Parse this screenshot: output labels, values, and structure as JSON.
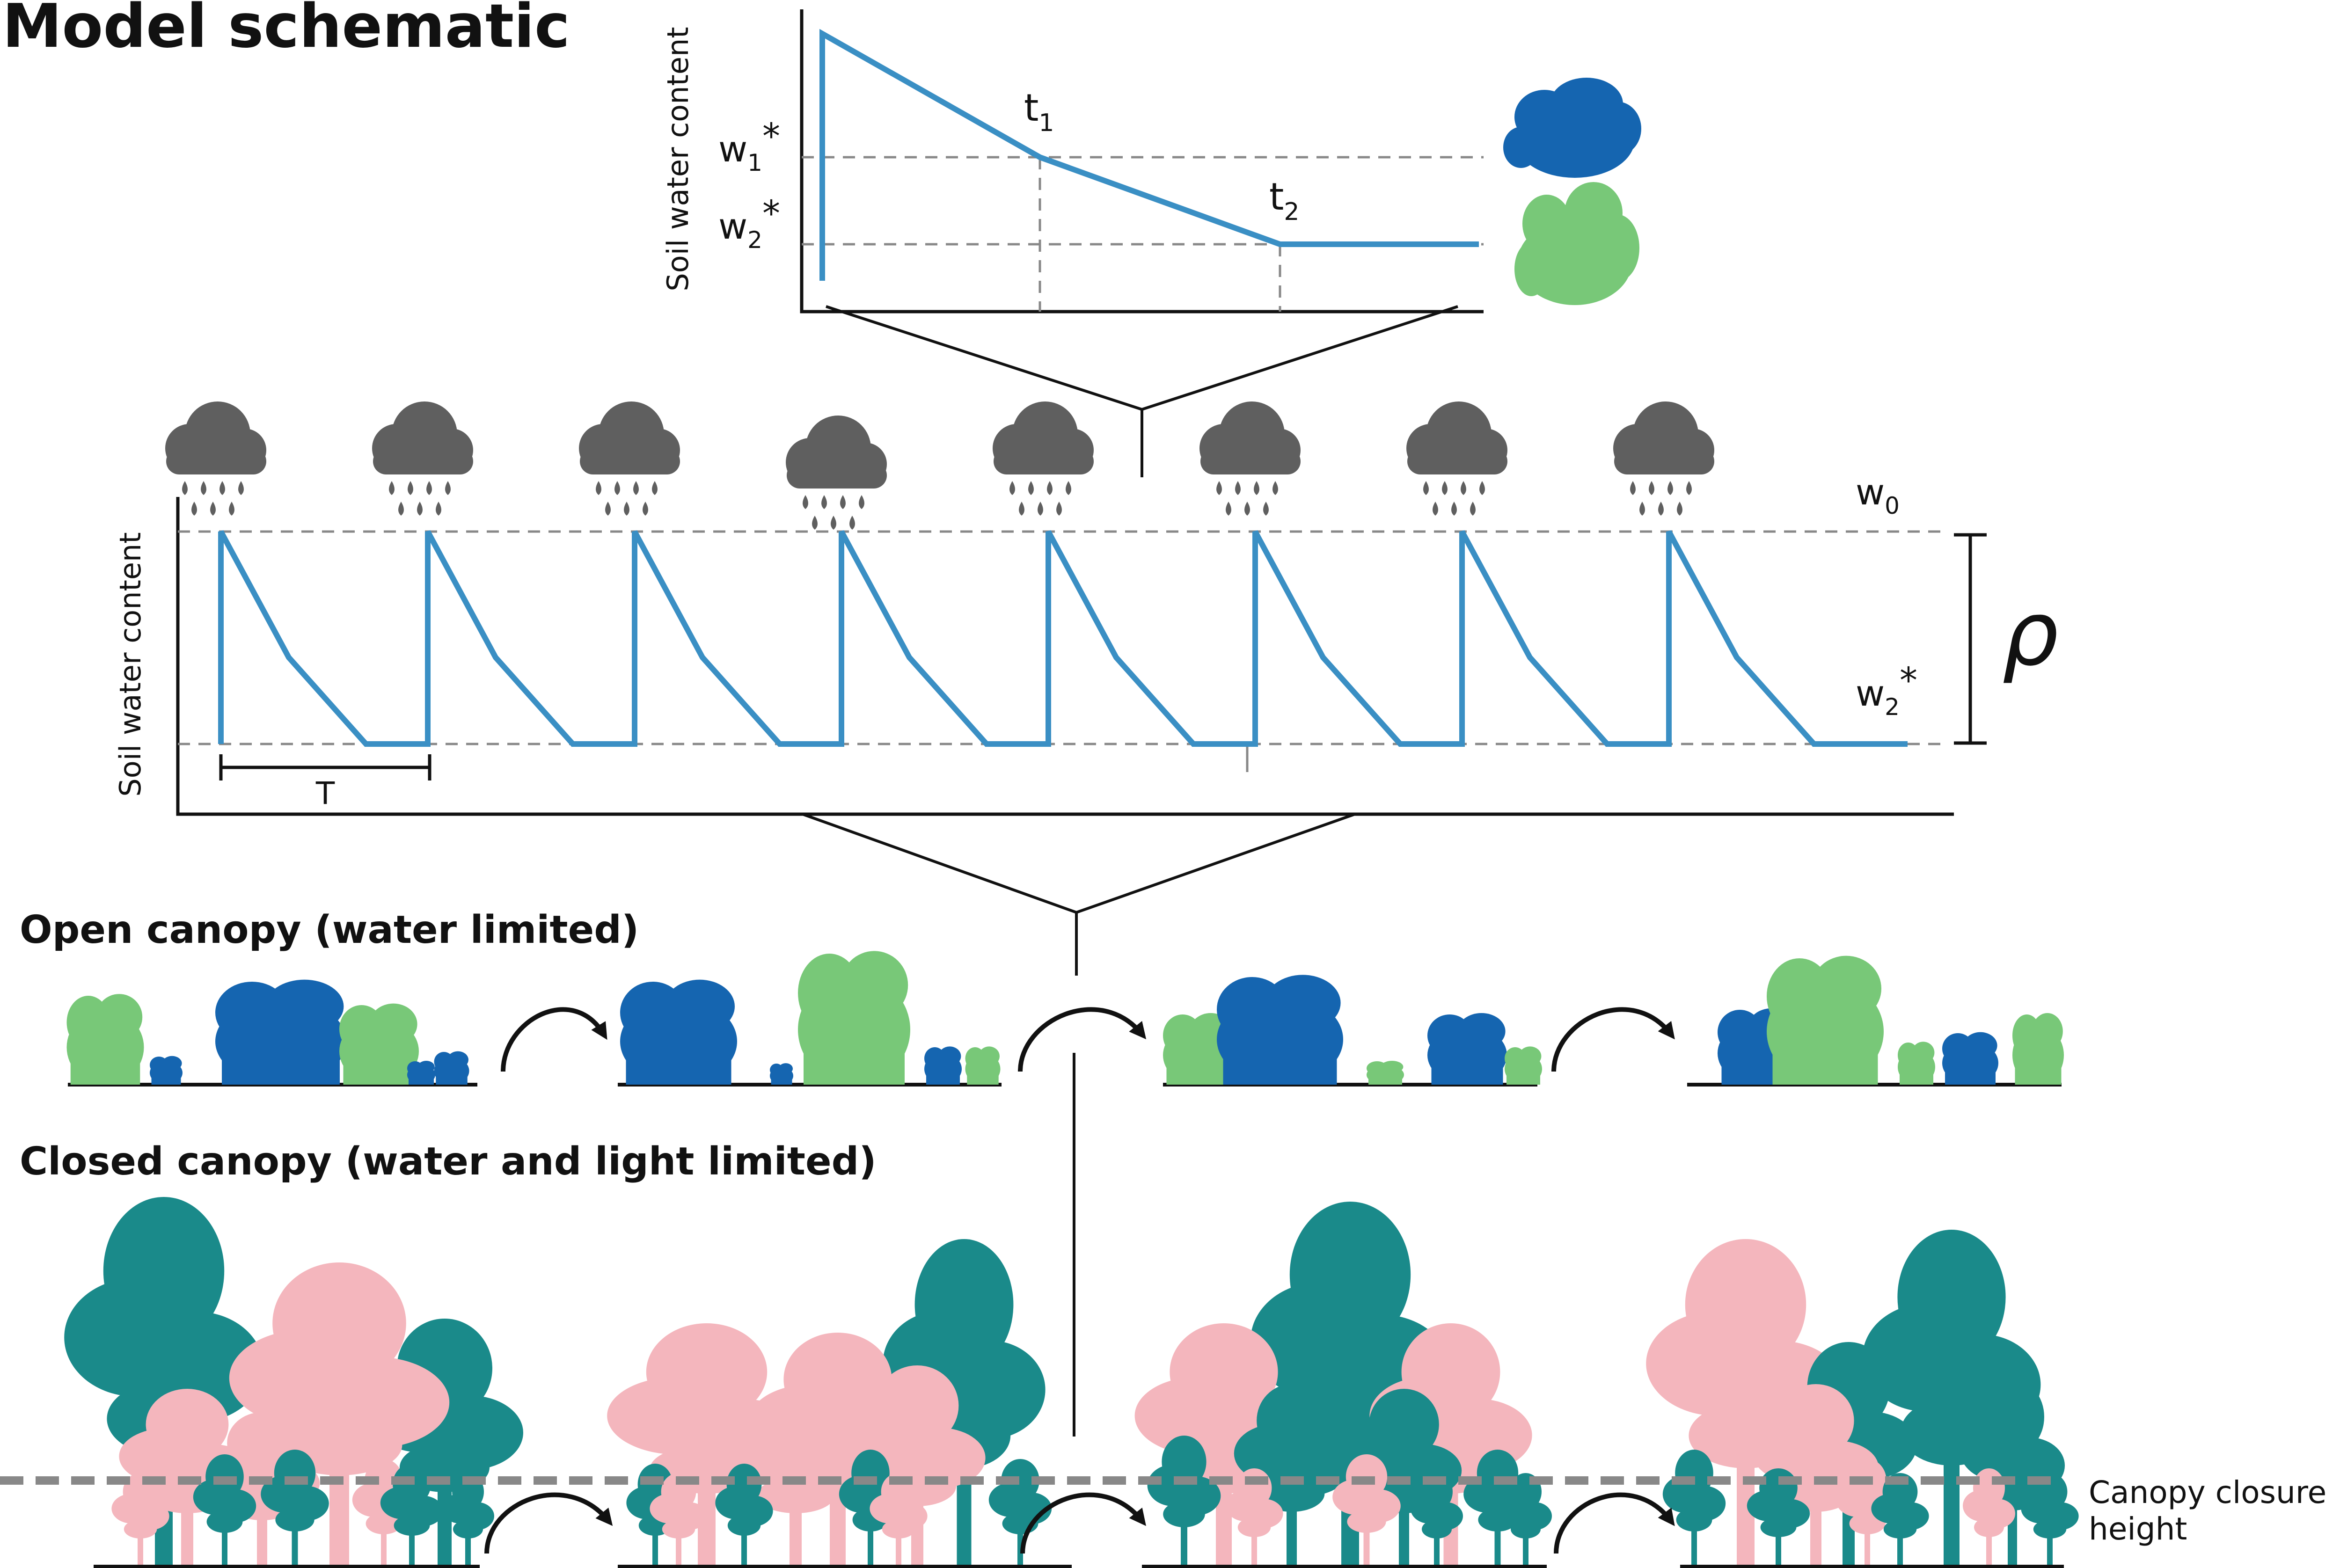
{
  "title": "Model schematic",
  "colors": {
    "curve": "#3a8fc4",
    "dark_blue_shrub": "#1565b0",
    "light_green_shrub": "#78c878",
    "teal_tree": "#1a8a8a",
    "pink_tree": "#f4b6bd",
    "cloud": "#5f5f5f",
    "dashed": "#888888"
  },
  "icons": [
    "rain-cloud-icon",
    "shrub-icon",
    "tree-icon",
    "curved-arrow-icon"
  ],
  "top_plot": {
    "ylabel": "Soil water content",
    "w1_label": "w",
    "w1_sub": "1",
    "w1_sup": "*",
    "w2_label": "w",
    "w2_sub": "2",
    "w2_sup": "*",
    "t1_label": "t",
    "t1_sub": "1",
    "t2_label": "t",
    "t2_sub": "2"
  },
  "middle_plot": {
    "ylabel": "Soil water content",
    "w0_label": "w",
    "w0_sub": "0",
    "w2_label": "w",
    "w2_sub": "2",
    "w2_sup": "*",
    "rho_label": "ρ",
    "period_label": "T",
    "storm_count": 8
  },
  "open_section": {
    "title": "Open canopy (water limited)"
  },
  "closed_section": {
    "title": "Closed canopy (water and light limited)",
    "closure_label_line1": "Canopy closure",
    "closure_label_line2": "height"
  }
}
